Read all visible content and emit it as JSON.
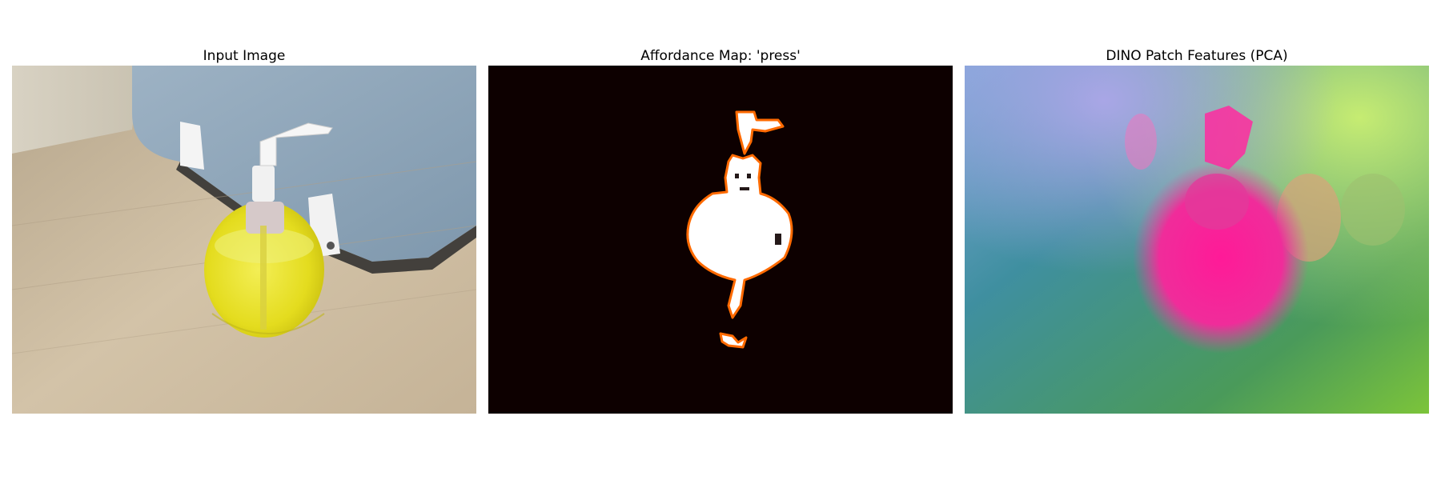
{
  "figure": {
    "panels": [
      {
        "title": "Input Image"
      },
      {
        "title": "Affordance Map: 'press'"
      },
      {
        "title": "DINO Patch Features (PCA)"
      }
    ]
  },
  "colors": {
    "affordance_background": "#0d0000",
    "affordance_mask": "#ffffff",
    "affordance_edge": "#ff5500",
    "soap_liquid": "#e8e020",
    "table_wood": "#c9b79d",
    "partition": "#8fa6bb",
    "pca_teal": "#3f8fa0",
    "pca_magenta": "#ff2aa0",
    "pca_lime": "#b7e06a"
  }
}
